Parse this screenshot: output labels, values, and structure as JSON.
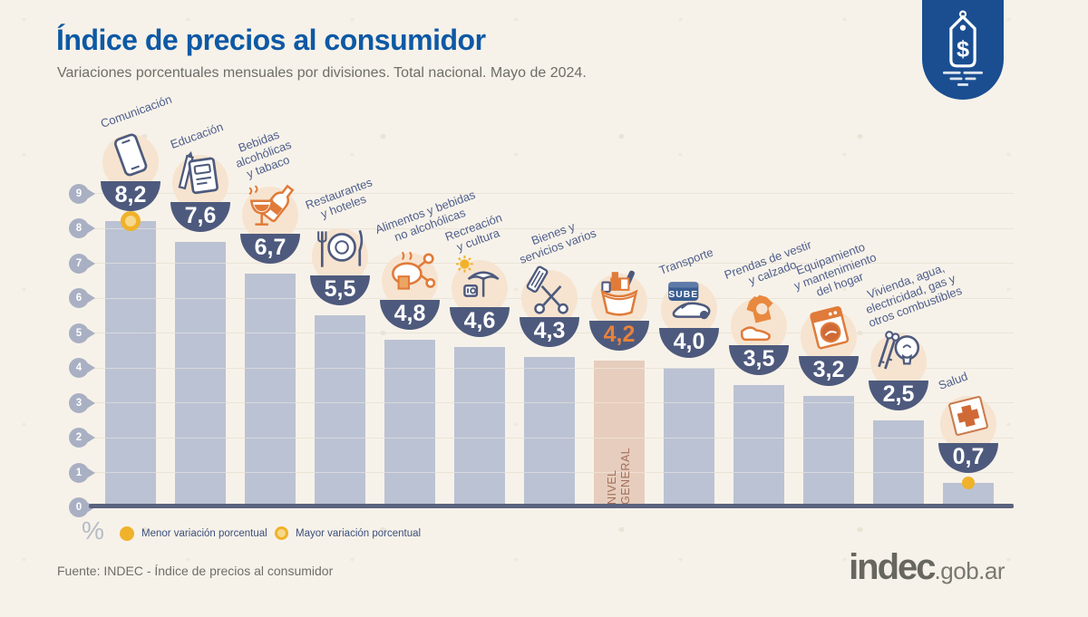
{
  "header": {
    "title": "Índice de precios al consumidor",
    "subtitle": "Variaciones porcentuales mensuales por divisiones. Total nacional. Mayo de 2024."
  },
  "brand": {
    "badge_icon": "price-tag-icon",
    "badge_symbol": "$",
    "logo_main": "indec",
    "logo_suffix": ".gob.ar"
  },
  "chart_data": {
    "type": "bar",
    "title": "Índice de precios al consumidor",
    "subtitle": "Variaciones porcentuales mensuales por divisiones. Total nacional. Mayo de 2024.",
    "ylabel": "%",
    "ylim": [
      0,
      9
    ],
    "yticks": [
      0,
      1,
      2,
      3,
      4,
      5,
      6,
      7,
      8,
      9
    ],
    "grid": true,
    "legend_position": "bottom",
    "categories": [
      {
        "id": "comunicacion",
        "label": "Comunicación",
        "value": 8.2,
        "display": "8,2",
        "icon": "smartphone-icon",
        "marker": "mayor"
      },
      {
        "id": "educacion",
        "label": "Educación",
        "value": 7.6,
        "display": "7,6",
        "icon": "notebook-pencil-icon"
      },
      {
        "id": "bebidas-alcoholicas-tabaco",
        "label": "Bebidas\nalcohólicas\ny tabaco",
        "value": 6.7,
        "display": "6,7",
        "icon": "drinks-tobacco-icon"
      },
      {
        "id": "restaurantes-hoteles",
        "label": "Restaurantes\ny hoteles",
        "value": 5.5,
        "display": "5,5",
        "icon": "restaurant-icon"
      },
      {
        "id": "alimentos-bebidas",
        "label": "Alimentos y bebidas\nno alcohólicas",
        "value": 4.8,
        "display": "4,8",
        "icon": "food-icon"
      },
      {
        "id": "recreacion-cultura",
        "label": "Recreación\ny cultura",
        "value": 4.6,
        "display": "4,6",
        "icon": "recreation-icon"
      },
      {
        "id": "bienes-servicios-varios",
        "label": "Bienes y\nservicios varios",
        "value": 4.3,
        "display": "4,3",
        "icon": "personal-goods-icon"
      },
      {
        "id": "nivel-general",
        "label": "",
        "bar_label": "NIVEL\nGENERAL",
        "value": 4.2,
        "display": "4,2",
        "icon": "shopping-basket-icon",
        "highlight": true
      },
      {
        "id": "transporte",
        "label": "Transporte",
        "value": 4.0,
        "display": "4,0",
        "icon": "transport-icon",
        "card_text": "SUBE"
      },
      {
        "id": "prendas-vestir-calzado",
        "label": "Prendas de vestir\ny calzado",
        "value": 3.5,
        "display": "3,5",
        "icon": "clothing-icon"
      },
      {
        "id": "equipamiento-hogar",
        "label": "Equipamiento\ny mantenimiento\ndel hogar",
        "value": 3.2,
        "display": "3,2",
        "icon": "home-equipment-icon"
      },
      {
        "id": "vivienda-combustibles",
        "label": "Vivienda, agua,\nelectricidad, gas y\notros combustibles",
        "value": 2.5,
        "display": "2,5",
        "icon": "housing-icon"
      },
      {
        "id": "salud",
        "label": "Salud",
        "value": 0.7,
        "display": "0,7",
        "icon": "health-icon",
        "marker": "menor"
      }
    ]
  },
  "legend": {
    "unit_symbol": "%",
    "items": [
      {
        "marker_type": "dot",
        "label": "Menor variación porcentual"
      },
      {
        "marker_type": "ring",
        "label": "Mayor variación porcentual"
      }
    ]
  },
  "footer": {
    "source": "Fuente: INDEC - Índice de precios al consumidor"
  },
  "colors": {
    "title_blue": "#0d59a5",
    "bar": "#b8bfd1",
    "bar_highlight": "#e5cbbb",
    "bowl": "#4e5a7d",
    "accent_orange": "#e07b3a",
    "marker_yellow": "#f0b22a",
    "badge_blue": "#1a4e91",
    "background": "#f7f2e9"
  }
}
